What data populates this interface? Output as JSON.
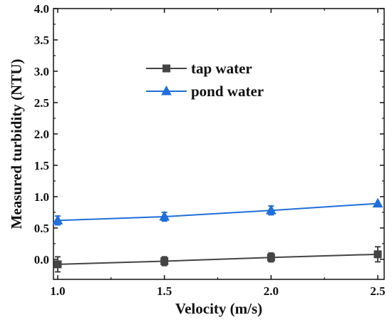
{
  "chart_data": {
    "type": "line",
    "title": "",
    "xlabel": "Velocity (m/s)",
    "ylabel": "Measured turbidity (NTU)",
    "xlim": [
      0.98,
      2.53
    ],
    "ylim": [
      -0.32,
      4.0
    ],
    "xticks": [
      "1.0",
      "1.5",
      "2.0",
      "2.5"
    ],
    "yticks": [
      "0.0",
      "0.5",
      "1.0",
      "1.5",
      "2.0",
      "2.5",
      "3.0",
      "3.5",
      "4.0"
    ],
    "grid": false,
    "legend_position": "upper-center",
    "x": [
      1.0,
      1.5,
      2.0,
      2.5
    ],
    "series": [
      {
        "name": "tap water",
        "values": [
          -0.08,
          -0.03,
          0.03,
          0.08
        ],
        "errors": [
          0.12,
          0.07,
          0.07,
          0.12
        ],
        "marker": "square",
        "color": "#444444"
      },
      {
        "name": "pond water",
        "values": [
          0.62,
          0.68,
          0.78,
          0.89
        ],
        "errors": [
          0.07,
          0.07,
          0.07,
          0.0
        ],
        "marker": "triangle",
        "color": "#1f6fdc"
      }
    ]
  }
}
